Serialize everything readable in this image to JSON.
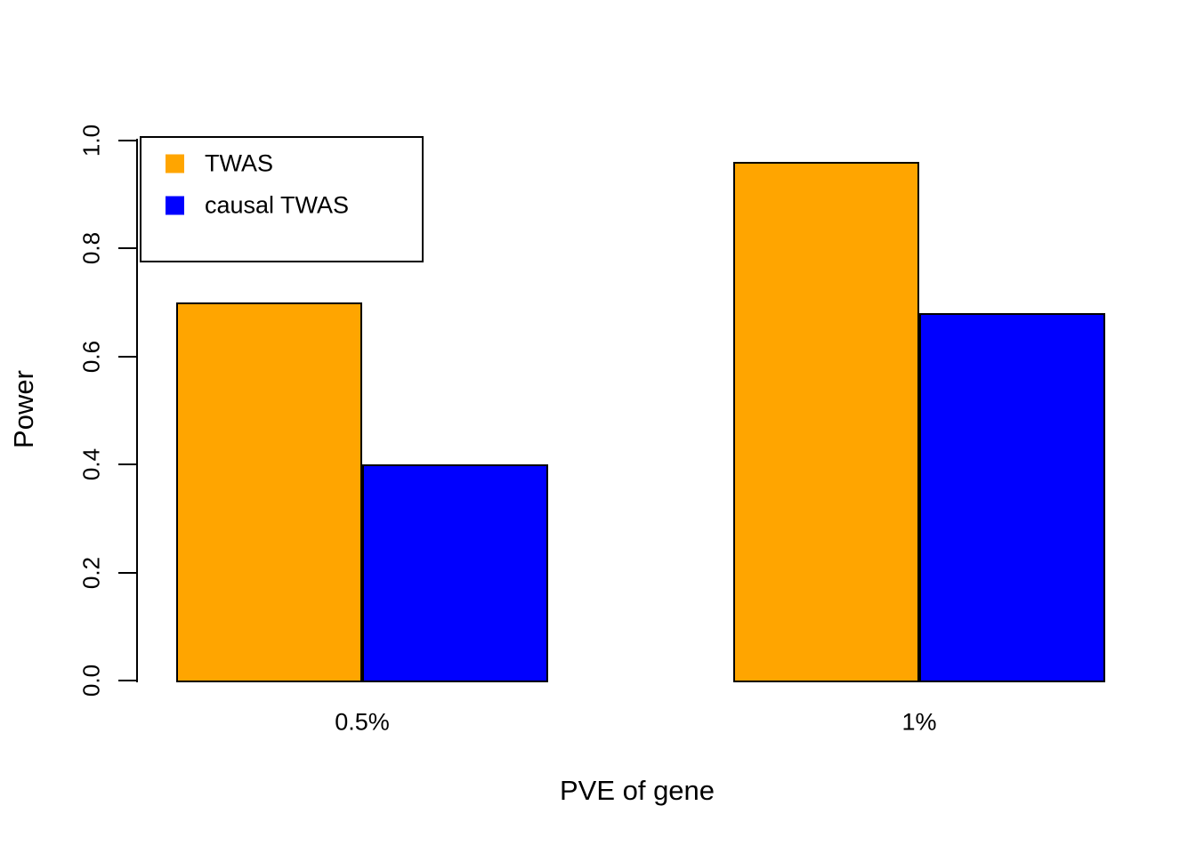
{
  "chart_data": {
    "type": "bar",
    "title": "",
    "xlabel": "PVE of gene",
    "ylabel": "Power",
    "categories": [
      "0.5%",
      "1%"
    ],
    "series": [
      {
        "name": "TWAS",
        "color": "#FFA500",
        "values": [
          0.7,
          0.96
        ]
      },
      {
        "name": "causal TWAS",
        "color": "#0000FF",
        "values": [
          0.4,
          0.68
        ]
      }
    ],
    "ylim": [
      0.0,
      1.0
    ],
    "yticks": [
      "0.0",
      "0.2",
      "0.4",
      "0.6",
      "0.8",
      "1.0"
    ],
    "grid": false,
    "legend_position": "top-left",
    "bar_border_color": "#000000",
    "axis_color": "#000000",
    "background": "#FFFFFF"
  }
}
